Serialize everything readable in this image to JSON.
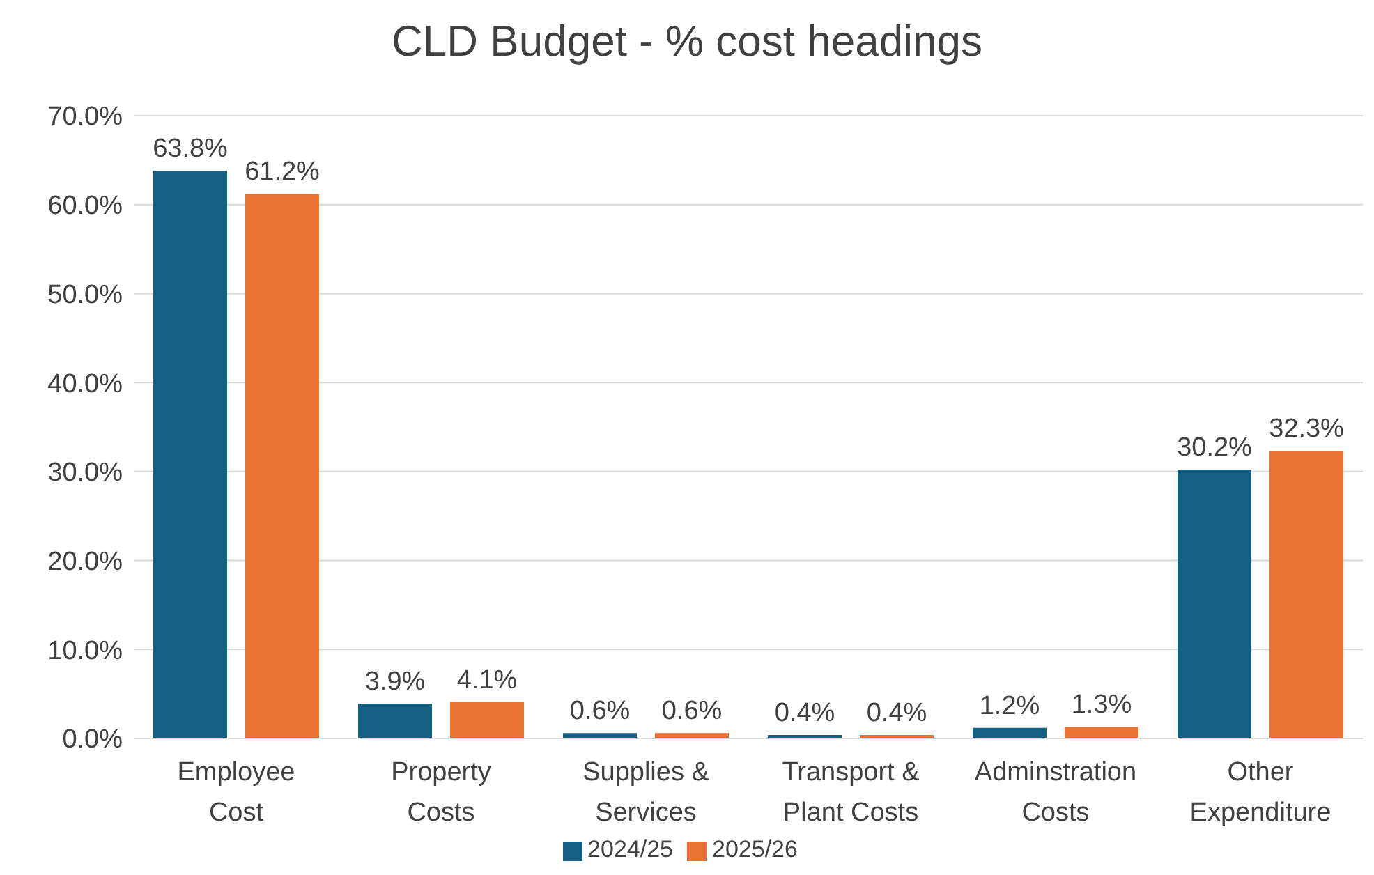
{
  "chart_data": {
    "type": "bar",
    "title": "CLD Budget - % cost headings",
    "categories": [
      "Employee Cost",
      "Property Costs",
      "Supplies & Services",
      "Transport & Plant Costs",
      "Adminstration Costs",
      "Other Expenditure"
    ],
    "series": [
      {
        "name": "2024/25",
        "color": "#156082",
        "values": [
          63.8,
          3.9,
          0.6,
          0.4,
          1.2,
          30.2
        ],
        "value_labels": [
          "63.8%",
          "3.9%",
          "0.6%",
          "0.4%",
          "1.2%",
          "30.2%"
        ]
      },
      {
        "name": "2025/26",
        "color": "#e97132",
        "values": [
          61.2,
          4.1,
          0.6,
          0.4,
          1.3,
          32.3
        ],
        "value_labels": [
          "61.2%",
          "4.1%",
          "0.6%",
          "0.4%",
          "1.3%",
          "32.3%"
        ]
      }
    ],
    "ylim": [
      0,
      70
    ],
    "yticks": [
      {
        "value": 0,
        "label": "0.0%"
      },
      {
        "value": 10,
        "label": "10.0%"
      },
      {
        "value": 20,
        "label": "20.0%"
      },
      {
        "value": 30,
        "label": "30.0%"
      },
      {
        "value": 40,
        "label": "40.0%"
      },
      {
        "value": 50,
        "label": "50.0%"
      },
      {
        "value": 60,
        "label": "60.0%"
      },
      {
        "value": 70,
        "label": "70.0%"
      }
    ],
    "grid": "y",
    "legend": "bottom"
  }
}
